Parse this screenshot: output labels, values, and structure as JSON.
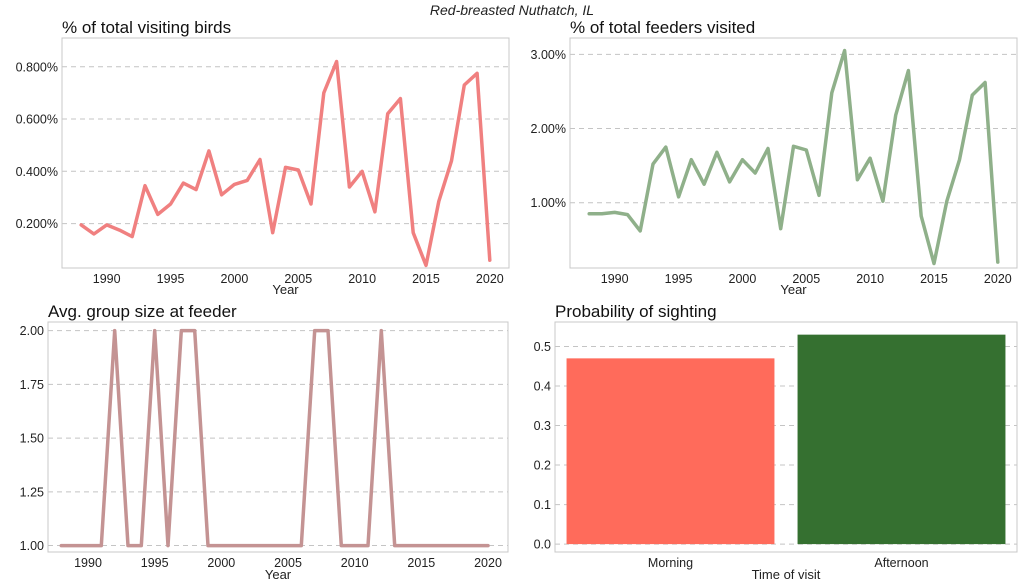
{
  "figure": {
    "suptitle": "Red-breasted Nuthatch, IL"
  },
  "chart_data": [
    {
      "type": "line",
      "title": "% of total visiting birds",
      "xlabel": "Year",
      "ylabel": "",
      "color": "#f08080",
      "xlim": [
        1986.5,
        2021.5
      ],
      "ylim": [
        0.0003,
        0.0091
      ],
      "xticks": [
        1990,
        1995,
        2000,
        2005,
        2010,
        2015,
        2020
      ],
      "xtick_labels": [
        "1990",
        "1995",
        "2000",
        "2005",
        "2010",
        "2015",
        "2020"
      ],
      "yticks": [
        0.002,
        0.004,
        0.006,
        0.008
      ],
      "ytick_labels": [
        "0.200%",
        "0.400%",
        "0.600%",
        "0.800%"
      ],
      "grid": "horizontal-dashed",
      "x": [
        1988,
        1989,
        1990,
        1991,
        1992,
        1993,
        1994,
        1995,
        1996,
        1997,
        1998,
        1999,
        2000,
        2001,
        2002,
        2003,
        2004,
        2005,
        2006,
        2007,
        2008,
        2009,
        2010,
        2011,
        2012,
        2013,
        2014,
        2015,
        2016,
        2017,
        2018,
        2019,
        2020
      ],
      "y": [
        0.00195,
        0.0016,
        0.00195,
        0.00175,
        0.0015,
        0.00345,
        0.00235,
        0.00275,
        0.00355,
        0.0033,
        0.00478,
        0.0031,
        0.0035,
        0.00365,
        0.00445,
        0.00165,
        0.00415,
        0.00405,
        0.00275,
        0.007,
        0.0082,
        0.0034,
        0.004,
        0.00245,
        0.0062,
        0.00678,
        0.00165,
        0.0004,
        0.00285,
        0.0044,
        0.0073,
        0.00775,
        0.0006
      ]
    },
    {
      "type": "line",
      "title": "% of total feeders visited",
      "xlabel": "Year",
      "ylabel": "",
      "color": "#8fb08a",
      "xlim": [
        1986.5,
        2021.5
      ],
      "ylim": [
        0.0012,
        0.0322
      ],
      "xticks": [
        1990,
        1995,
        2000,
        2005,
        2010,
        2015,
        2020
      ],
      "xtick_labels": [
        "1990",
        "1995",
        "2000",
        "2005",
        "2010",
        "2015",
        "2020"
      ],
      "yticks": [
        0.01,
        0.02,
        0.03
      ],
      "ytick_labels": [
        "1.00%",
        "2.00%",
        "3.00%"
      ],
      "grid": "horizontal-dashed",
      "x": [
        1988,
        1989,
        1990,
        1991,
        1992,
        1993,
        1994,
        1995,
        1996,
        1997,
        1998,
        1999,
        2000,
        2001,
        2002,
        2003,
        2004,
        2005,
        2006,
        2007,
        2008,
        2009,
        2010,
        2011,
        2012,
        2013,
        2014,
        2015,
        2016,
        2017,
        2018,
        2019,
        2020
      ],
      "y": [
        0.0085,
        0.0085,
        0.0087,
        0.0084,
        0.0062,
        0.0152,
        0.0175,
        0.0108,
        0.0158,
        0.0125,
        0.0168,
        0.0128,
        0.0158,
        0.014,
        0.0173,
        0.0065,
        0.0176,
        0.0171,
        0.011,
        0.0248,
        0.0305,
        0.0131,
        0.016,
        0.0102,
        0.0218,
        0.0278,
        0.0082,
        0.0018,
        0.0102,
        0.0158,
        0.0245,
        0.0262,
        0.002
      ]
    },
    {
      "type": "line",
      "title": "Avg. group size at feeder",
      "xlabel": "Year",
      "ylabel": "",
      "color": "#c49393",
      "xlim": [
        1987,
        2021.5
      ],
      "ylim": [
        0.97,
        2.04
      ],
      "xticks": [
        1990,
        1995,
        2000,
        2005,
        2010,
        2015,
        2020
      ],
      "xtick_labels": [
        "1990",
        "1995",
        "2000",
        "2005",
        "2010",
        "2015",
        "2020"
      ],
      "yticks": [
        1.0,
        1.25,
        1.5,
        1.75,
        2.0
      ],
      "ytick_labels": [
        "1.00",
        "1.25",
        "1.50",
        "1.75",
        "2.00"
      ],
      "grid": "horizontal-dashed",
      "x": [
        1988,
        1989,
        1990,
        1991,
        1992,
        1993,
        1994,
        1995,
        1996,
        1997,
        1998,
        1999,
        2000,
        2001,
        2002,
        2003,
        2004,
        2005,
        2006,
        2007,
        2008,
        2009,
        2010,
        2011,
        2012,
        2013,
        2014,
        2015,
        2016,
        2017,
        2018,
        2019,
        2020
      ],
      "y": [
        1,
        1,
        1,
        1,
        2,
        1,
        1,
        2,
        1,
        2,
        2,
        1,
        1,
        1,
        1,
        1,
        1,
        1,
        1,
        2,
        2,
        1,
        1,
        1,
        2,
        1,
        1,
        1,
        1,
        1,
        1,
        1,
        1
      ]
    },
    {
      "type": "bar",
      "title": "Probability of sighting",
      "xlabel": "Time of visit",
      "ylabel": "",
      "categories": [
        "Morning",
        "Afternoon"
      ],
      "values": [
        0.47,
        0.53
      ],
      "colors": [
        "#ff6b5b",
        "#357030"
      ],
      "ylim": [
        -0.02,
        0.562
      ],
      "yticks": [
        0.0,
        0.1,
        0.2,
        0.3,
        0.4,
        0.5
      ],
      "ytick_labels": [
        "0.0",
        "0.1",
        "0.2",
        "0.3",
        "0.4",
        "0.5"
      ],
      "grid": "horizontal-dashed"
    }
  ]
}
